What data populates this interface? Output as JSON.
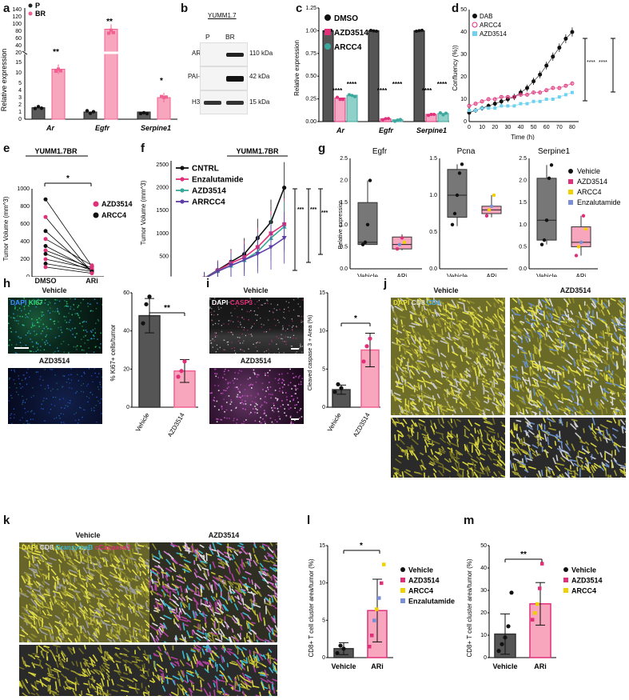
{
  "panel_labels": [
    "a",
    "b",
    "c",
    "d",
    "e",
    "f",
    "g",
    "h",
    "i",
    "j",
    "k",
    "l",
    "m"
  ],
  "colors": {
    "grey": "#5a5a5a",
    "pink": "#f06292",
    "pink_bar": "#f7a6bd",
    "teal": "#3aa79c",
    "black": "#111111",
    "light_blue": "#6ed1f0",
    "magenta": "#e0307a",
    "purple": "#5e3fa6",
    "gold": "#f0d000",
    "slate_blue": "#7a8fd6",
    "yellow_fluor": "#cfd52a"
  },
  "a": {
    "ylabel": "Relative expression",
    "legend": [
      "P",
      "BR"
    ],
    "categories": [
      "Ar",
      "Egfr",
      "Serpine1"
    ],
    "yticks_low": [
      "0",
      "1",
      "2",
      "3",
      "4",
      "5",
      "10",
      "15"
    ],
    "yticks_high": [
      "20",
      "40",
      "60",
      "80",
      "100",
      "120",
      "140"
    ],
    "sig": [
      "**",
      "**",
      "*"
    ]
  },
  "b": {
    "title": "YUMM1.7",
    "lanes": [
      "P",
      "BR"
    ],
    "rows": [
      {
        "name": "AR",
        "kda": "110 kDa"
      },
      {
        "name": "PAI-1",
        "kda": "42 kDa"
      },
      {
        "name": "H3",
        "kda": "15 kDa"
      }
    ]
  },
  "c": {
    "ylabel": "Relative expression",
    "legend": [
      "DMSO",
      "AZD3514",
      "ARCC4"
    ],
    "categories": [
      "Ar",
      "Egfr",
      "Serpine1"
    ],
    "yticks": [
      "0.00",
      "0.25",
      "0.50",
      "0.75",
      "1.00",
      "1.25"
    ],
    "sig": "****"
  },
  "d": {
    "ylabel": "Confluency (%))",
    "xlabel": "Time (h)",
    "legend": [
      "DAB",
      "ARCC4",
      "AZD3514"
    ],
    "xticks": [
      "0",
      "10",
      "20",
      "30",
      "40",
      "50",
      "60",
      "70",
      "80"
    ],
    "yticks": [
      "0",
      "10",
      "20",
      "30",
      "40",
      "50"
    ],
    "sig": "****"
  },
  "e": {
    "title": "YUMM1.7BR",
    "ylabel": "Tumor Volume (mm^3)",
    "categories": [
      "DMSO",
      "ARi"
    ],
    "legend": [
      "AZD3514",
      "ARCC4"
    ],
    "yticks": [
      "0",
      "200",
      "400",
      "600",
      "800",
      "1000"
    ],
    "sig": "*"
  },
  "f": {
    "title": "YUMM1.7BR",
    "ylabel": "Tumor Volume (mm^3)",
    "xlabel": "Days",
    "legend": [
      "CNTRL",
      "Enzalutamide",
      "AZD3514",
      "ARRCC4"
    ],
    "xticks": [
      "0",
      "2",
      "4",
      "6",
      "8",
      "10",
      "12",
      "14",
      "16",
      "18"
    ],
    "yticks": [
      "0",
      "500",
      "1000",
      "1500",
      "2000",
      "2500"
    ],
    "sig": "***"
  },
  "g": {
    "ylabel": "Relative expression",
    "genes": [
      "Egfr",
      "Pcna",
      "Serpine1"
    ],
    "categories": [
      "Vehicle",
      "ARi"
    ],
    "legend": [
      "Vehicle",
      "AZD3514",
      "ARCC4",
      "Enzalutamide"
    ],
    "egfr_yticks": [
      "0.0",
      "0.5",
      "1.0",
      "1.5",
      "2.0",
      "2.5"
    ],
    "pcna_yticks": [
      "0.0",
      "0.5",
      "1.0",
      "1.5"
    ],
    "serp_yticks": [
      "0.0",
      "0.5",
      "1.0",
      "1.5",
      "2.0",
      "2.5"
    ]
  },
  "h": {
    "top_title": "Vehicle",
    "bottom_title": "AZD3514",
    "stain_dapi": "DAPI",
    "stain_ki": "Ki67",
    "ylabel": "% Ki67+ cells/tumor",
    "categories": [
      "Vehicle",
      "AZD3514"
    ],
    "yticks": [
      "0",
      "20",
      "40",
      "60"
    ],
    "sig": "**"
  },
  "i": {
    "top_title": "Vehicle",
    "bottom_title": "AZD3514",
    "stain_dapi": "DAPI",
    "stain_casp": "CASP3",
    "ylabel": "Cleaved caspase 3 + Area (%)",
    "categories": [
      "Vehicle",
      "AZD3514"
    ],
    "yticks": [
      "0",
      "5",
      "10",
      "15"
    ],
    "sig": "*"
  },
  "j": {
    "left_title": "Vehicle",
    "right_title": "AZD3514",
    "stain_dapi": "DAPI",
    "stain_cd8": "CD8",
    "stain_cd4": "CD4"
  },
  "k": {
    "left_title": "Vehicle",
    "right_title": "AZD3514",
    "stain_dapi": "DAPI",
    "stain_cd8": "CD8",
    "stain_gzmb": "GranzymeB",
    "stain_casp": "cCaspase3"
  },
  "l": {
    "ylabel": "CD8+ T cell cluster area/tumor (%)",
    "categories": [
      "Vehicle",
      "ARi"
    ],
    "legend": [
      "Vehicle",
      "AZD3514",
      "ARCC4",
      "Enzalutamide"
    ],
    "yticks": [
      "0",
      "5",
      "10",
      "15"
    ],
    "sig": "*"
  },
  "m": {
    "ylabel": "CD8+ T cell cluster area/tumor (%)",
    "categories": [
      "Vehicle",
      "ARi"
    ],
    "legend": [
      "Vehicle",
      "AZD3514",
      "ARCC4"
    ],
    "yticks": [
      "0",
      "10",
      "20",
      "30",
      "40",
      "50"
    ],
    "sig": "**"
  },
  "chart_data": [
    {
      "panel": "a",
      "type": "bar",
      "categories": [
        "Ar",
        "Egfr",
        "Serpine1"
      ],
      "series": [
        {
          "name": "P",
          "values": [
            1.6,
            1.0,
            1.0
          ]
        },
        {
          "name": "BR",
          "values": [
            12.5,
            90,
            3.0
          ]
        }
      ]
    },
    {
      "panel": "c",
      "type": "bar",
      "categories": [
        "Ar",
        "Egfr",
        "Serpine1"
      ],
      "series": [
        {
          "name": "DMSO",
          "values": [
            1.0,
            1.0,
            1.0
          ]
        },
        {
          "name": "AZD3514",
          "values": [
            0.26,
            0.03,
            0.08
          ]
        },
        {
          "name": "ARCC4",
          "values": [
            0.29,
            0.02,
            0.09
          ]
        }
      ],
      "ylim": [
        0,
        1.25
      ]
    },
    {
      "panel": "d",
      "type": "line",
      "x": [
        0,
        5,
        10,
        15,
        20,
        25,
        30,
        35,
        40,
        45,
        50,
        55,
        60,
        65,
        70,
        75,
        80
      ],
      "series": [
        {
          "name": "DAB",
          "values": [
            4,
            5,
            6,
            7,
            8,
            9,
            10,
            11,
            13,
            15,
            18,
            21,
            25,
            29,
            33,
            37,
            40
          ]
        },
        {
          "name": "ARCC4",
          "values": [
            7,
            8,
            9,
            10,
            10,
            11,
            11,
            11,
            12,
            12,
            13,
            13,
            14,
            15,
            15,
            16,
            17
          ]
        },
        {
          "name": "AZD3514",
          "values": [
            5,
            5,
            6,
            6,
            6,
            7,
            7,
            7,
            8,
            8,
            9,
            9,
            10,
            10,
            11,
            12,
            13
          ]
        }
      ],
      "xlim": [
        0,
        85
      ],
      "ylim": [
        0,
        50
      ]
    },
    {
      "panel": "e",
      "type": "scatter",
      "categories": [
        "DMSO",
        "ARi"
      ],
      "pairs": [
        [
          880,
          120
        ],
        [
          680,
          50
        ],
        [
          520,
          60
        ],
        [
          430,
          130
        ],
        [
          350,
          80
        ],
        [
          300,
          100
        ],
        [
          260,
          70
        ],
        [
          200,
          90
        ],
        [
          150,
          60
        ],
        [
          110,
          40
        ]
      ],
      "ylim": [
        0,
        1000
      ]
    },
    {
      "panel": "f",
      "type": "line",
      "x": [
        0,
        5,
        7,
        9,
        11,
        13,
        15,
        17
      ],
      "series": [
        {
          "name": "CNTRL",
          "values": [
            0,
            20,
            200,
            380,
            550,
            900,
            1250,
            2000
          ]
        },
        {
          "name": "Enzalutamide",
          "values": [
            0,
            15,
            190,
            350,
            480,
            700,
            1000,
            1200
          ]
        },
        {
          "name": "AZD3514",
          "values": [
            0,
            15,
            180,
            300,
            420,
            600,
            900,
            1150
          ]
        },
        {
          "name": "ARRCC4",
          "values": [
            0,
            10,
            170,
            300,
            420,
            550,
            700,
            900
          ]
        }
      ],
      "xlim": [
        0,
        18
      ],
      "ylim": [
        0,
        2500
      ]
    },
    {
      "panel": "h",
      "type": "bar",
      "categories": [
        "Vehicle",
        "AZD3514"
      ],
      "values": [
        48,
        19
      ],
      "ylim": [
        0,
        60
      ]
    },
    {
      "panel": "i",
      "type": "bar",
      "categories": [
        "Vehicle",
        "AZD3514"
      ],
      "values": [
        2.3,
        7.5
      ],
      "ylim": [
        0,
        15
      ]
    },
    {
      "panel": "l",
      "type": "bar",
      "categories": [
        "Vehicle",
        "ARi"
      ],
      "values": [
        1.2,
        6.3
      ],
      "ylim": [
        0,
        15
      ]
    },
    {
      "panel": "m",
      "type": "bar",
      "categories": [
        "Vehicle",
        "ARi"
      ],
      "values": [
        10.5,
        24
      ],
      "ylim": [
        0,
        50
      ]
    }
  ]
}
